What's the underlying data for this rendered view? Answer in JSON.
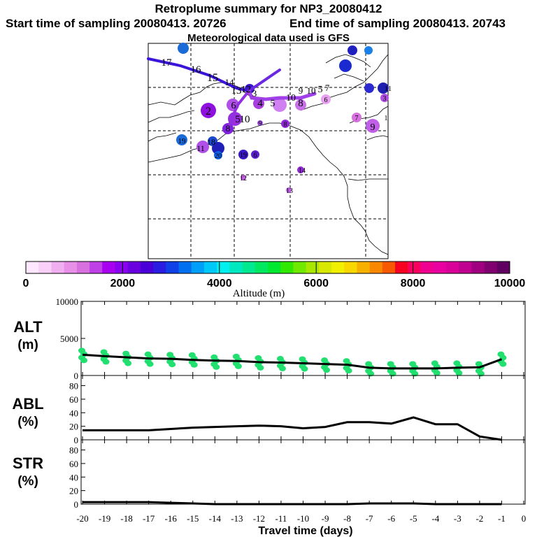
{
  "header": {
    "title": "Retroplume summary for NP3_20080412",
    "start": "Start time of sampling 20080413. 20726",
    "end": "End time of sampling 20080413. 20743",
    "met": "Meteorological data used is GFS"
  },
  "colorbar": {
    "title": "Altitude (m)",
    "ticks": [
      "0",
      "2000",
      "4000",
      "6000",
      "8000",
      "10000"
    ],
    "range": [
      0,
      10000
    ],
    "colors": [
      "#ffe8ff",
      "#f8d0f8",
      "#f0b0f0",
      "#e890e8",
      "#d870e0",
      "#c040e8",
      "#a800f0",
      "#8a00f0",
      "#6a00e0",
      "#4a00d8",
      "#2a1ce0",
      "#1040e8",
      "#0070f0",
      "#00a0f8",
      "#00c8f8",
      "#00f0f0",
      "#00e8c0",
      "#00e890",
      "#00e860",
      "#00e830",
      "#30e800",
      "#70e800",
      "#a8e800",
      "#d8e800",
      "#f0f000",
      "#f8d800",
      "#f8b000",
      "#f88800",
      "#f85800",
      "#f80020",
      "#f80060",
      "#f00090",
      "#e800a0",
      "#d80098",
      "#c00090",
      "#a00080",
      "#800070",
      "#600060"
    ]
  },
  "map": {
    "labels": [
      {
        "t": "15",
        "c": "#1a6ad8"
      },
      {
        "t": "16",
        "c": "#2020c0"
      },
      {
        "t": "16",
        "c": "#1880e8"
      },
      {
        "t": "10",
        "c": "#1a2ad0"
      },
      {
        "t": "17",
        "c": "#000000"
      },
      {
        "t": "16",
        "c": "#000000"
      },
      {
        "t": "15",
        "c": "#000000"
      },
      {
        "t": "14",
        "c": "#000000"
      },
      {
        "t": "13",
        "c": "#000000"
      },
      {
        "t": "12",
        "c": "#000000"
      },
      {
        "t": "3",
        "c": "#000000"
      },
      {
        "t": "4",
        "c": "#000000"
      },
      {
        "t": "5",
        "c": "#000000"
      },
      {
        "t": "10",
        "c": "#000000"
      },
      {
        "t": "9",
        "c": "#000000"
      },
      {
        "t": "10",
        "c": "#000000"
      },
      {
        "t": "5",
        "c": "#000000"
      },
      {
        "t": "7",
        "c": "#000000"
      },
      {
        "t": "2",
        "c": "#000000"
      },
      {
        "t": "6",
        "c": "#000000"
      },
      {
        "t": "5",
        "c": "#000000"
      },
      {
        "t": "10",
        "c": "#000000"
      },
      {
        "t": "8",
        "c": "#000000"
      },
      {
        "t": "9",
        "c": "#000000"
      },
      {
        "t": "8",
        "c": "#000000"
      },
      {
        "t": "8",
        "c": "#000000"
      },
      {
        "t": "7",
        "c": "#000000"
      },
      {
        "t": "9",
        "c": "#000000"
      },
      {
        "t": "6",
        "c": "#000000"
      },
      {
        "t": "19",
        "c": "#000000"
      },
      {
        "t": "11",
        "c": "#000000"
      },
      {
        "t": "18",
        "c": "#000000"
      },
      {
        "t": "20",
        "c": "#000000"
      },
      {
        "t": "19",
        "c": "#000000"
      },
      {
        "t": "6",
        "c": "#000000"
      },
      {
        "t": "12",
        "c": "#000000"
      },
      {
        "t": "14",
        "c": "#000000"
      },
      {
        "t": "13",
        "c": "#000000"
      },
      {
        "t": "1",
        "c": "#000000"
      },
      {
        "t": "11",
        "c": "#000000"
      },
      {
        "t": "3",
        "c": "#000000"
      }
    ]
  },
  "chart_data": [
    {
      "type": "scatter",
      "title": "ALT (m)",
      "ylabel": "ALT (m)",
      "yticks": [
        "10000",
        "5000",
        "0"
      ],
      "ylim": [
        0,
        10000
      ],
      "xlim": [
        -20,
        0
      ],
      "line": {
        "x": [
          -20,
          -19,
          -18,
          -17,
          -16,
          -15,
          -14,
          -13,
          -12,
          -11,
          -10,
          -9,
          -8,
          -7,
          -6,
          -5,
          -4,
          -3,
          -2,
          -1
        ],
        "y": [
          2800,
          2600,
          2450,
          2300,
          2250,
          2100,
          2000,
          1950,
          1800,
          1750,
          1650,
          1550,
          1450,
          1050,
          950,
          950,
          950,
          1050,
          1100,
          2200
        ]
      },
      "points": {
        "x": [
          -20,
          -19,
          -18,
          -17,
          -16,
          -15,
          -14,
          -13,
          -12,
          -11,
          -10,
          -9,
          -8,
          -7,
          -6,
          -5,
          -4,
          -3,
          -2,
          -1
        ],
        "y": [
          2700,
          2500,
          2300,
          2200,
          2150,
          2100,
          1800,
          1900,
          1700,
          1600,
          1550,
          1400,
          1300,
          900,
          900,
          900,
          1000,
          1000,
          900,
          2200
        ]
      }
    },
    {
      "type": "line",
      "ylabel": "ABL (%)",
      "yticks": [
        "0",
        "20",
        "40",
        "60",
        "80"
      ],
      "ylim": [
        0,
        95
      ],
      "x": [
        -20,
        -19,
        -18,
        -17,
        -16,
        -15,
        -14,
        -13,
        -12,
        -11,
        -10,
        -9,
        -8,
        -7,
        -6,
        -5,
        -4,
        -3,
        -2,
        -1
      ],
      "y": [
        14,
        14,
        14,
        14,
        16,
        18,
        19,
        20,
        21,
        20,
        17,
        19,
        26,
        26,
        24,
        33,
        23,
        23,
        5,
        0
      ]
    },
    {
      "type": "line",
      "ylabel": "STR (%)",
      "yticks": [
        "0",
        "20",
        "40",
        "60",
        "80"
      ],
      "ylim": [
        0,
        95
      ],
      "x": [
        -20,
        -19,
        -18,
        -17,
        -16,
        -15,
        -14,
        -13,
        -12,
        -11,
        -10,
        -9,
        -8,
        -7,
        -6,
        -5,
        -4,
        -3,
        -2,
        -1
      ],
      "y": [
        3,
        3,
        3,
        3,
        2,
        1,
        0,
        0,
        0,
        0,
        0,
        0,
        0,
        1,
        1,
        1,
        0,
        0,
        0,
        0
      ]
    }
  ],
  "xaxis": {
    "label": "Travel time (days)",
    "ticks": [
      "-20",
      "-19",
      "-18",
      "-17",
      "-16",
      "-15",
      "-14",
      "-13",
      "-12",
      "-11",
      "-10",
      "-9",
      "-8",
      "-7",
      "-6",
      "-5",
      "-4",
      "-3",
      "-2",
      "-1",
      "0"
    ]
  }
}
